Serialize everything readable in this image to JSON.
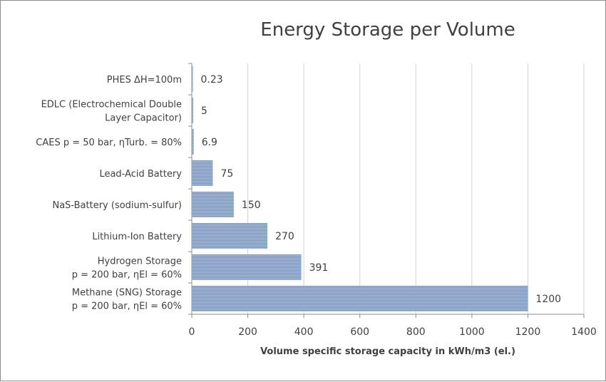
{
  "chart_data": {
    "type": "bar",
    "orientation": "horizontal",
    "title": "Energy Storage per Volume",
    "xlabel": "Volume specific storage capacity in kWh/m3 (el.)",
    "ylabel": "",
    "xlim": [
      0,
      1400
    ],
    "xticks": [
      0,
      200,
      400,
      600,
      800,
      1000,
      1200,
      1400
    ],
    "grid": "vertical",
    "bar_color": "#7095c6",
    "categories": [
      [
        "PHES ΔH=100m"
      ],
      [
        "EDLC (Electrochemical Double",
        "Layer Capacitor)"
      ],
      [
        "CAES p = 50 bar, ηTurb. = 80%"
      ],
      [
        "Lead-Acid Battery"
      ],
      [
        "NaS-Battery (sodium-sulfur)"
      ],
      [
        "Lithium-Ion Battery"
      ],
      [
        "Hydrogen Storage",
        "p = 200 bar, ηEl = 60%"
      ],
      [
        "Methane (SNG) Storage",
        "p = 200 bar, ηEl = 60%"
      ]
    ],
    "values": [
      0.23,
      5,
      6.9,
      75,
      150,
      270,
      391,
      1200
    ],
    "data_labels": [
      "0.23",
      "5",
      "6.9",
      "75",
      "150",
      "270",
      "391",
      "1200"
    ]
  }
}
